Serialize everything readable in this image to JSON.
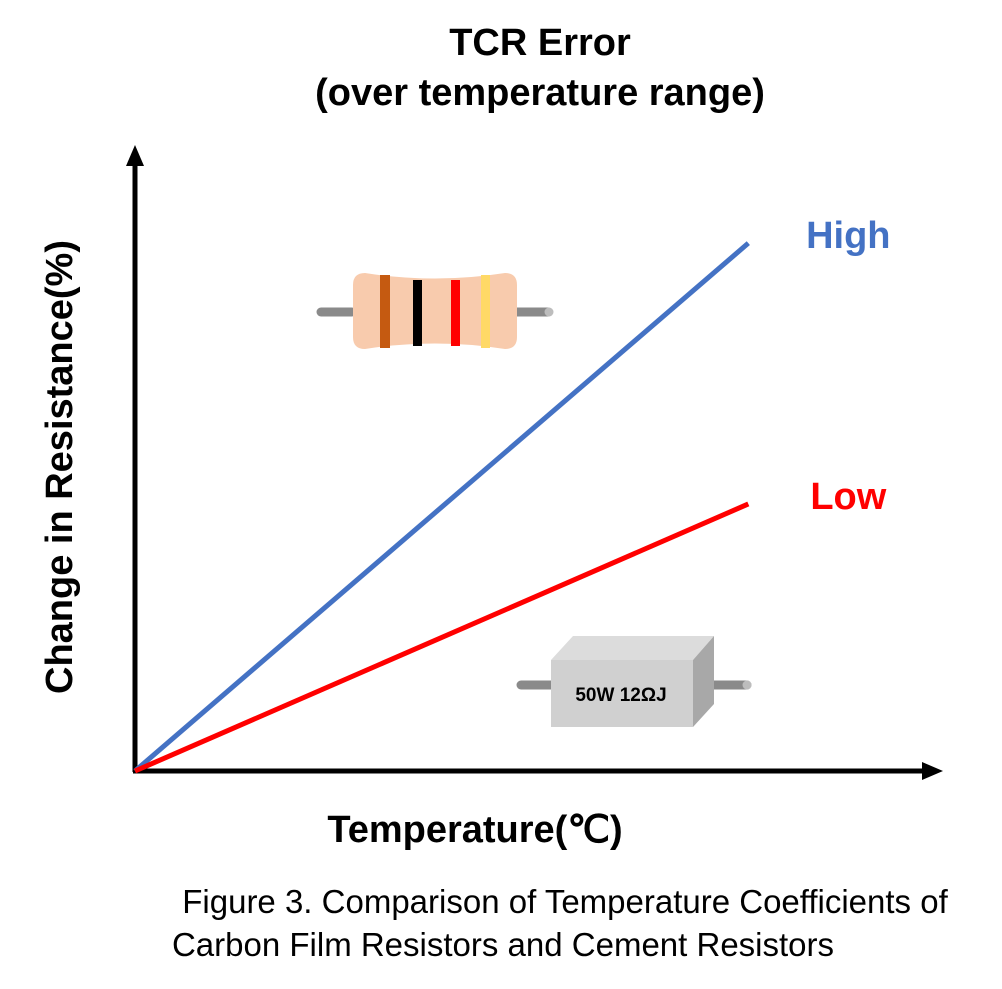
{
  "chart_data": {
    "type": "line",
    "title": "TCR Error",
    "subtitle": "(over temperature range)",
    "xlabel": "Temperature(℃)",
    "ylabel": "Change in Resistance(%)",
    "xlim": [
      0,
      1
    ],
    "ylim": [
      0,
      1
    ],
    "grid": false,
    "x": [
      0,
      0.76
    ],
    "series": [
      {
        "name": "High",
        "values": [
          0,
          0.85
        ],
        "color": "#4472C4"
      },
      {
        "name": "Low",
        "values": [
          0,
          0.43
        ],
        "color": "#FF0000"
      }
    ],
    "annotations": {
      "cement_resistor_label": "50W 12ΩJ"
    }
  },
  "caption": {
    "line1": "Figure 3. Comparison of Temperature Coefficients of",
    "line2": "Carbon Film Resistors and Cement Resistors"
  },
  "colors": {
    "axis": "#000000",
    "band_brown": "#C55A11",
    "band_black": "#000000",
    "band_red": "#FF0000",
    "band_gold": "#FFD966",
    "body_carbon": "#F8CBAD",
    "body_cement": "#D0D0D0"
  }
}
